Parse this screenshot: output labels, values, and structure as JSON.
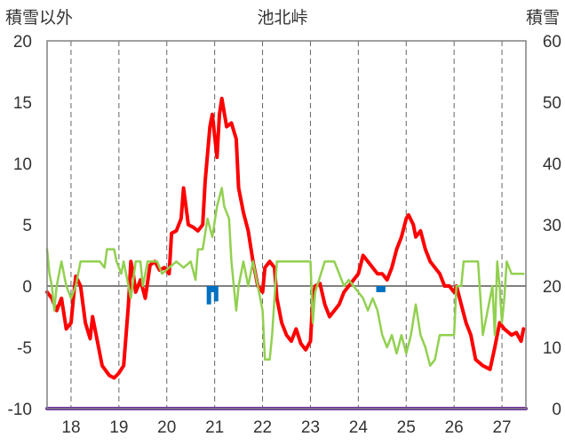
{
  "chart_data": {
    "type": "line",
    "title": "池北峠",
    "left_axis_label": "積雪以外",
    "right_axis_label": "積雪",
    "x_range": [
      17.5,
      27.5
    ],
    "x_ticks": [
      18,
      19,
      20,
      21,
      22,
      23,
      24,
      25,
      26,
      27
    ],
    "x_tick_labels": [
      "18",
      "19",
      "20",
      "21",
      "22",
      "23",
      "24",
      "25",
      "26",
      "27"
    ],
    "y_left_range": [
      -10,
      20
    ],
    "y_left_ticks": [
      -10,
      -5,
      0,
      5,
      10,
      15,
      20
    ],
    "y_left_tick_labels": [
      "-10",
      "-5",
      "0",
      "5",
      "10",
      "15",
      "20"
    ],
    "y_right_range": [
      0,
      60
    ],
    "y_right_ticks": [
      0,
      10,
      20,
      30,
      40,
      50,
      60
    ],
    "y_right_tick_labels": [
      "0",
      "10",
      "20",
      "30",
      "40",
      "50",
      "60"
    ],
    "grid": "vertical dashed at each day",
    "series": [
      {
        "axis": "left",
        "kind": "line",
        "color": "#ff0000",
        "points": [
          [
            17.5,
            -0.5
          ],
          [
            17.6,
            -1.0
          ],
          [
            17.7,
            -2.0
          ],
          [
            17.8,
            -1.0
          ],
          [
            17.9,
            -3.5
          ],
          [
            18.0,
            -3.0
          ],
          [
            18.05,
            -1.0
          ],
          [
            18.1,
            0.8
          ],
          [
            18.2,
            0.0
          ],
          [
            18.3,
            -3.0
          ],
          [
            18.4,
            -4.3
          ],
          [
            18.45,
            -2.5
          ],
          [
            18.55,
            -4.5
          ],
          [
            18.65,
            -6.5
          ],
          [
            18.8,
            -7.3
          ],
          [
            18.9,
            -7.5
          ],
          [
            19.0,
            -7.1
          ],
          [
            19.1,
            -6.5
          ],
          [
            19.15,
            -4.0
          ],
          [
            19.2,
            -1.5
          ],
          [
            19.25,
            2.0
          ],
          [
            19.3,
            1.0
          ],
          [
            19.35,
            -0.5
          ],
          [
            19.45,
            0.5
          ],
          [
            19.55,
            -1.0
          ],
          [
            19.65,
            1.7
          ],
          [
            19.75,
            2.0
          ],
          [
            19.85,
            1.3
          ],
          [
            19.95,
            1.5
          ],
          [
            20.05,
            1.0
          ],
          [
            20.1,
            4.3
          ],
          [
            20.2,
            4.5
          ],
          [
            20.3,
            5.5
          ],
          [
            20.35,
            8.0
          ],
          [
            20.45,
            5.0
          ],
          [
            20.55,
            4.8
          ],
          [
            20.65,
            4.5
          ],
          [
            20.75,
            5.0
          ],
          [
            20.8,
            8.5
          ],
          [
            20.9,
            13.0
          ],
          [
            20.95,
            14.0
          ],
          [
            21.05,
            10.5
          ],
          [
            21.1,
            14.0
          ],
          [
            21.15,
            15.3
          ],
          [
            21.25,
            13.0
          ],
          [
            21.35,
            13.3
          ],
          [
            21.45,
            12.0
          ],
          [
            21.5,
            8.0
          ],
          [
            21.6,
            6.0
          ],
          [
            21.7,
            4.5
          ],
          [
            21.8,
            2.0
          ],
          [
            21.9,
            0.0
          ],
          [
            22.0,
            -0.5
          ],
          [
            22.05,
            1.5
          ],
          [
            22.15,
            2.0
          ],
          [
            22.25,
            1.5
          ],
          [
            22.3,
            -1.0
          ],
          [
            22.4,
            -3.0
          ],
          [
            22.5,
            -4.0
          ],
          [
            22.6,
            -4.5
          ],
          [
            22.7,
            -3.5
          ],
          [
            22.8,
            -4.7
          ],
          [
            22.9,
            -5.2
          ],
          [
            23.0,
            -4.5
          ],
          [
            23.05,
            -1.0
          ],
          [
            23.1,
            0.0
          ],
          [
            23.2,
            0.2
          ],
          [
            23.3,
            -1.5
          ],
          [
            23.4,
            -2.5
          ],
          [
            23.5,
            -2.0
          ],
          [
            23.6,
            -1.5
          ],
          [
            23.7,
            -0.5
          ],
          [
            23.8,
            0.0
          ],
          [
            23.9,
            0.5
          ],
          [
            24.0,
            1.0
          ],
          [
            24.1,
            2.5
          ],
          [
            24.2,
            2.0
          ],
          [
            24.3,
            1.5
          ],
          [
            24.4,
            1.0
          ],
          [
            24.5,
            1.0
          ],
          [
            24.6,
            0.5
          ],
          [
            24.7,
            1.5
          ],
          [
            24.8,
            3.0
          ],
          [
            24.9,
            4.0
          ],
          [
            25.0,
            5.5
          ],
          [
            25.05,
            5.8
          ],
          [
            25.15,
            5.0
          ],
          [
            25.2,
            4.0
          ],
          [
            25.3,
            4.5
          ],
          [
            25.4,
            3.0
          ],
          [
            25.5,
            2.0
          ],
          [
            25.6,
            1.5
          ],
          [
            25.7,
            1.0
          ],
          [
            25.8,
            0.0
          ],
          [
            25.9,
            0.0
          ],
          [
            26.0,
            -0.5
          ],
          [
            26.05,
            0.0
          ],
          [
            26.15,
            -1.5
          ],
          [
            26.25,
            -3.0
          ],
          [
            26.35,
            -4.0
          ],
          [
            26.45,
            -6.0
          ],
          [
            26.6,
            -6.5
          ],
          [
            26.75,
            -6.8
          ],
          [
            26.85,
            -5.0
          ],
          [
            26.95,
            -3.0
          ],
          [
            27.05,
            -3.5
          ],
          [
            27.2,
            -4.0
          ],
          [
            27.3,
            -3.8
          ],
          [
            27.4,
            -4.5
          ],
          [
            27.45,
            -3.5
          ]
        ]
      },
      {
        "axis": "left",
        "kind": "line",
        "color": "#92d050",
        "points": [
          [
            17.5,
            3.0
          ],
          [
            17.55,
            1.0
          ],
          [
            17.6,
            0.0
          ],
          [
            17.65,
            -2.0
          ],
          [
            17.7,
            0.0
          ],
          [
            17.8,
            2.0
          ],
          [
            17.9,
            0.0
          ],
          [
            18.0,
            -1.0
          ],
          [
            18.1,
            0.0
          ],
          [
            18.2,
            2.0
          ],
          [
            18.4,
            2.0
          ],
          [
            18.5,
            2.0
          ],
          [
            18.6,
            2.0
          ],
          [
            18.7,
            1.5
          ],
          [
            18.75,
            3.0
          ],
          [
            18.9,
            3.0
          ],
          [
            18.95,
            2.0
          ],
          [
            19.05,
            1.0
          ],
          [
            19.1,
            2.0
          ],
          [
            19.2,
            0.0
          ],
          [
            19.25,
            -1.0
          ],
          [
            19.35,
            2.0
          ],
          [
            19.45,
            2.0
          ],
          [
            19.5,
            0.0
          ],
          [
            19.6,
            2.0
          ],
          [
            19.8,
            2.0
          ],
          [
            19.9,
            1.0
          ],
          [
            20.05,
            1.5
          ],
          [
            20.2,
            2.0
          ],
          [
            20.35,
            1.5
          ],
          [
            20.5,
            2.0
          ],
          [
            20.6,
            0.5
          ],
          [
            20.65,
            3.0
          ],
          [
            20.75,
            3.0
          ],
          [
            20.85,
            5.5
          ],
          [
            20.95,
            4.0
          ],
          [
            21.05,
            6.5
          ],
          [
            21.15,
            8.0
          ],
          [
            21.2,
            6.5
          ],
          [
            21.3,
            5.5
          ],
          [
            21.35,
            2.0
          ],
          [
            21.45,
            -2.0
          ],
          [
            21.5,
            0.0
          ],
          [
            21.6,
            2.0
          ],
          [
            21.7,
            0.0
          ],
          [
            21.8,
            2.0
          ],
          [
            21.9,
            0.0
          ],
          [
            22.0,
            -2.0
          ],
          [
            22.05,
            -6.0
          ],
          [
            22.15,
            -6.0
          ],
          [
            22.2,
            -4.0
          ],
          [
            22.3,
            2.0
          ],
          [
            22.6,
            2.0
          ],
          [
            22.9,
            2.0
          ],
          [
            23.0,
            2.0
          ],
          [
            23.05,
            -3.0
          ],
          [
            23.1,
            -0.5
          ],
          [
            23.3,
            2.0
          ],
          [
            23.5,
            2.0
          ],
          [
            23.6,
            1.0
          ],
          [
            23.7,
            0.0
          ],
          [
            23.8,
            0.5
          ],
          [
            23.9,
            0.0
          ],
          [
            24.0,
            -0.5
          ],
          [
            24.1,
            -1.0
          ],
          [
            24.2,
            -2.0
          ],
          [
            24.3,
            -1.0
          ],
          [
            24.4,
            -2.0
          ],
          [
            24.45,
            -3.0
          ],
          [
            24.5,
            -4.0
          ],
          [
            24.6,
            -5.0
          ],
          [
            24.7,
            -4.0
          ],
          [
            24.8,
            -5.5
          ],
          [
            24.9,
            -4.0
          ],
          [
            25.0,
            -5.5
          ],
          [
            25.1,
            -4.0
          ],
          [
            25.2,
            -1.5
          ],
          [
            25.3,
            -4.0
          ],
          [
            25.4,
            -5.0
          ],
          [
            25.5,
            -6.5
          ],
          [
            25.6,
            -6.0
          ],
          [
            25.7,
            -4.0
          ],
          [
            25.8,
            -4.0
          ],
          [
            26.0,
            -4.0
          ],
          [
            26.05,
            0.0
          ],
          [
            26.15,
            0.0
          ],
          [
            26.2,
            2.0
          ],
          [
            26.4,
            2.0
          ],
          [
            26.5,
            2.0
          ],
          [
            26.6,
            -4.0
          ],
          [
            26.7,
            -2.0
          ],
          [
            26.8,
            0.0
          ],
          [
            26.85,
            -4.0
          ],
          [
            26.9,
            2.0
          ],
          [
            26.95,
            0.0
          ],
          [
            27.0,
            -3.0
          ],
          [
            27.05,
            -1.0
          ],
          [
            27.1,
            2.0
          ],
          [
            27.2,
            1.0
          ],
          [
            27.3,
            1.0
          ],
          [
            27.45,
            1.0
          ]
        ]
      },
      {
        "axis": "right",
        "kind": "line",
        "color": "#7030a0",
        "points": [
          [
            17.5,
            0.0
          ],
          [
            27.5,
            0.0
          ]
        ]
      },
      {
        "axis": "right",
        "kind": "bar",
        "color": "#0070c0",
        "baseline": 20,
        "points": [
          [
            20.88,
            17.0
          ],
          [
            20.93,
            19.0
          ],
          [
            20.98,
            19.0
          ],
          [
            21.03,
            17.5
          ],
          [
            24.42,
            19.0
          ],
          [
            24.47,
            19.0
          ],
          [
            24.52,
            19.0
          ]
        ]
      }
    ]
  }
}
